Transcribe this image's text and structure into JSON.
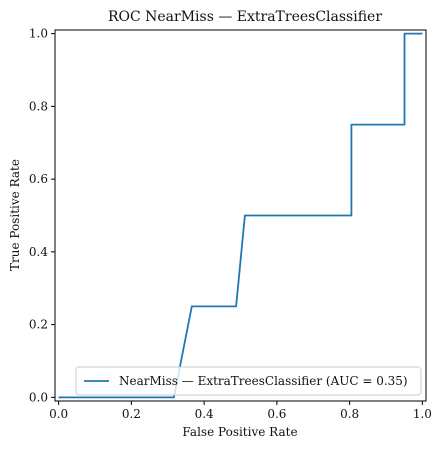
{
  "chart_data": {
    "type": "line",
    "title": "ROC NearMiss — ExtraTreesClassifier",
    "xlabel": "False Positive Rate",
    "ylabel": "True Positive Rate",
    "xlim": [
      -0.01,
      1.01
    ],
    "ylim": [
      -0.01,
      1.01
    ],
    "xticks": [
      {
        "value": 0.0,
        "label": "0.0"
      },
      {
        "value": 0.2,
        "label": "0.2"
      },
      {
        "value": 0.4,
        "label": "0.4"
      },
      {
        "value": 0.6,
        "label": "0.6"
      },
      {
        "value": 0.8,
        "label": "0.8"
      },
      {
        "value": 1.0,
        "label": "1.0"
      }
    ],
    "yticks": [
      {
        "value": 0.0,
        "label": "0.0"
      },
      {
        "value": 0.2,
        "label": "0.2"
      },
      {
        "value": 0.4,
        "label": "0.4"
      },
      {
        "value": 0.6,
        "label": "0.6"
      },
      {
        "value": 0.8,
        "label": "0.8"
      },
      {
        "value": 1.0,
        "label": "1.0"
      }
    ],
    "grid": false,
    "legend_position": "lower-right",
    "series": [
      {
        "name": "NearMiss — ExtraTreesClassifier (AUC = 0.35)",
        "color": "#1f77b4",
        "x": [
          0.0,
          0.317,
          0.366,
          0.488,
          0.512,
          0.805,
          0.805,
          0.951,
          0.951,
          1.0
        ],
        "y": [
          0.0,
          0.0,
          0.25,
          0.25,
          0.5,
          0.5,
          0.75,
          0.75,
          1.0,
          1.0
        ]
      }
    ]
  }
}
